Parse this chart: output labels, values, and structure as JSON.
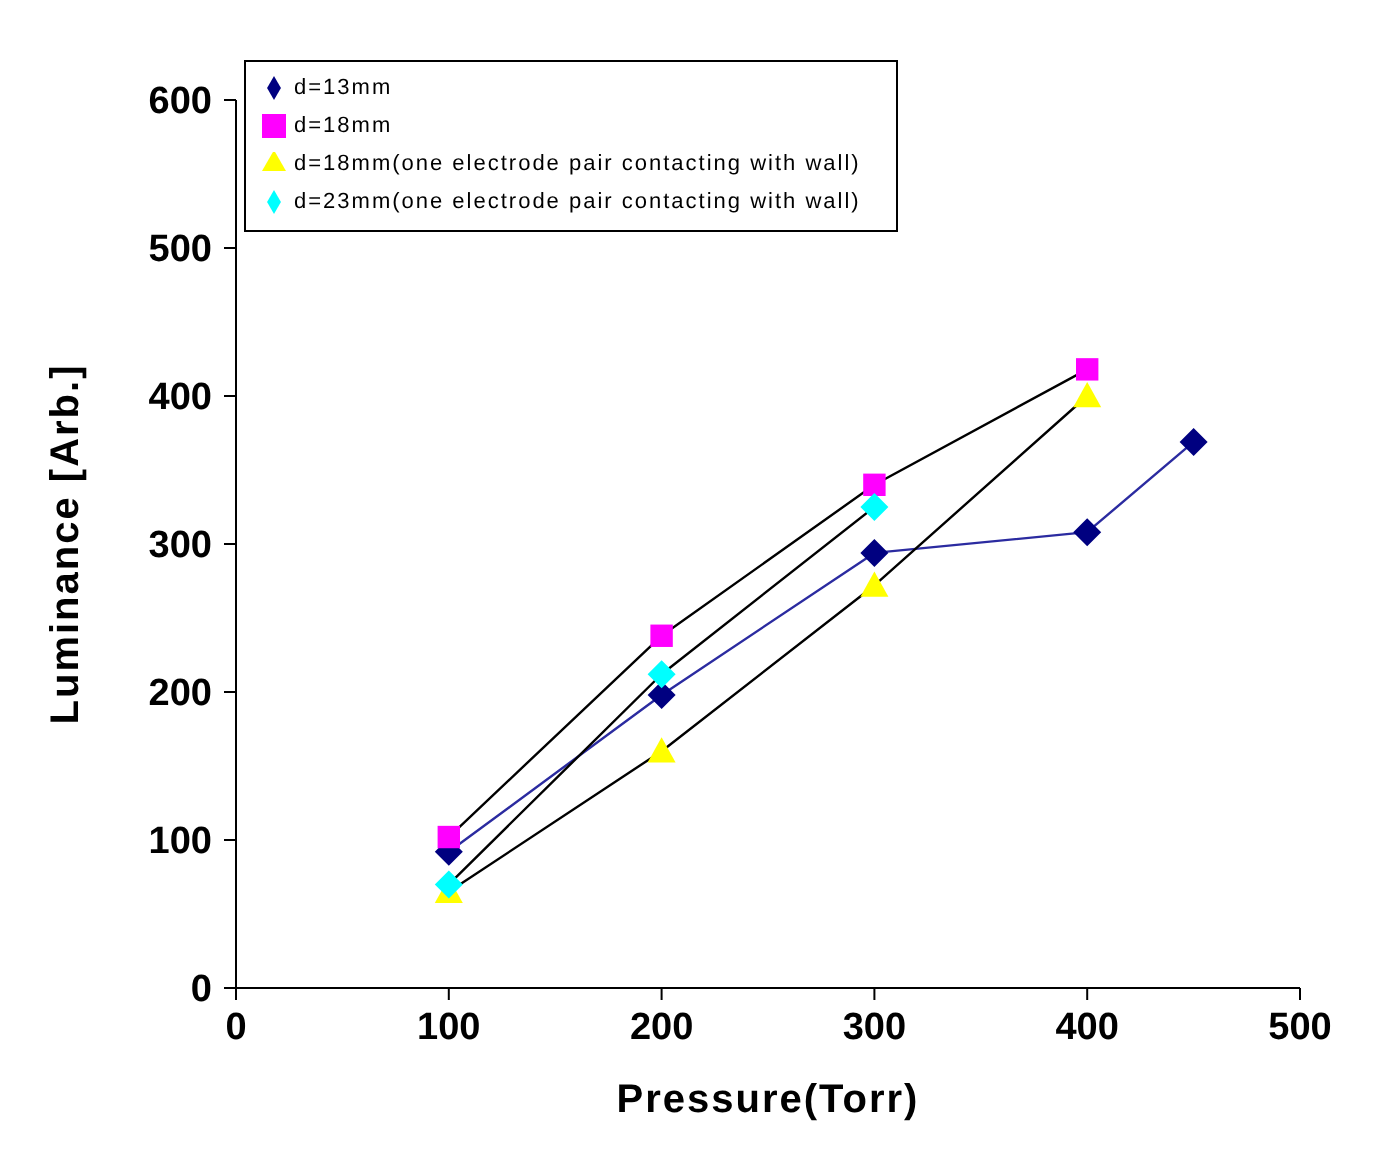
{
  "chart_data": {
    "type": "line",
    "xlabel": "Pressure(Torr)",
    "ylabel": "Luminance [Arb.]",
    "xlim": [
      0,
      500
    ],
    "xticks": [
      0,
      100,
      200,
      300,
      400,
      500
    ],
    "ylim": [
      0,
      600
    ],
    "yticks": [
      0,
      100,
      200,
      300,
      400,
      500,
      600
    ],
    "grid": false,
    "legend": "top left",
    "series": [
      {
        "name": "d=13mm",
        "color": "#2b2ba0",
        "colors": [
          "#000080",
          "#000080",
          "#000080",
          "#000080",
          "#000080"
        ],
        "marker": "diamond",
        "x": [
          100,
          200,
          300,
          400,
          450
        ],
        "values": [
          92,
          198,
          294,
          308,
          369
        ]
      },
      {
        "name": "d=18mm",
        "color": "#000000",
        "colors": [
          "#ff00ff",
          "#ff00ff",
          "#ff00ff",
          "#ff00ff"
        ],
        "marker": "square",
        "x": [
          100,
          200,
          300,
          400
        ],
        "values": [
          102,
          238,
          340,
          418
        ]
      },
      {
        "name": "d=18mm(one electrode pair contacting with wall)",
        "color": "#000000",
        "colors": [
          "#ffff00",
          "#ffff00",
          "#ffff00",
          "#ffff00"
        ],
        "marker": "triangle",
        "x": [
          100,
          200,
          300,
          400
        ],
        "values": [
          65,
          160,
          272,
          400
        ]
      },
      {
        "name": "d=23mm(one electrode pair contacting with wall)",
        "color": "#000000",
        "colors": [
          "#00ffff",
          "#00ffff",
          "#00ffff"
        ],
        "marker": "diamond",
        "x": [
          100,
          200,
          300
        ],
        "values": [
          70,
          212,
          325
        ]
      }
    ]
  }
}
